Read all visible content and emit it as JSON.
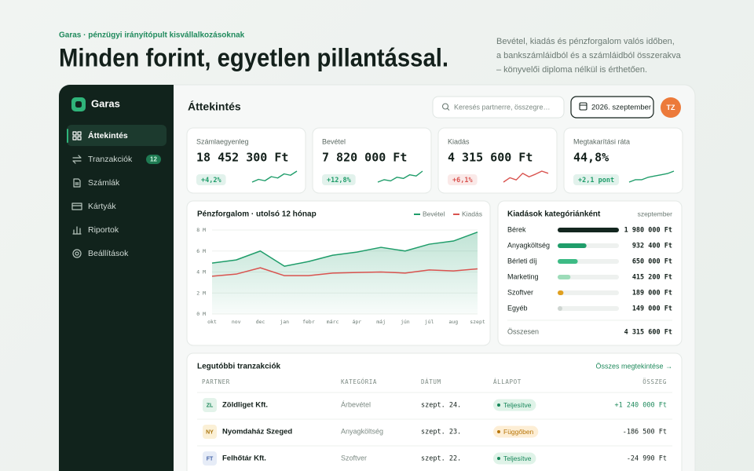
{
  "hero": {
    "eyebrow": "Garas · pénzügyi irányítópult kisvállalkozásoknak",
    "title": "Minden forint, egyetlen pillantással.",
    "description": "Bevétel, kiadás és pénzforgalom valós időben, a bankszámláidból és a számláidból összerakva – könyvelői diploma nélkül is érthetően."
  },
  "sidebar": {
    "brand": "Garas",
    "nav": [
      {
        "label": "Áttekintés",
        "active": true
      },
      {
        "label": "Tranzakciók",
        "badge": 12
      },
      {
        "label": "Számlák"
      },
      {
        "label": "Kártyák"
      },
      {
        "label": "Riportok"
      },
      {
        "label": "Beállítások"
      }
    ]
  },
  "topbar": {
    "title": "Áttekintés",
    "search_placeholder": "Keresés partnerre, összegre…",
    "period": "2026. szeptember",
    "avatar": "TZ"
  },
  "kpis": [
    {
      "label": "Számlaegyenleg",
      "value": "18 452 300 Ft",
      "delta": "+4,2%",
      "color": "#1f9d6a",
      "trend": [
        3,
        4,
        3.5,
        5,
        4.5,
        6,
        5.5,
        7
      ]
    },
    {
      "label": "Bevétel",
      "value": "7 820 000 Ft",
      "delta": "+12,8%",
      "color": "#1f9d6a",
      "trend": [
        2,
        3,
        2.5,
        4,
        3.5,
        5,
        4.5,
        6.5
      ]
    },
    {
      "label": "Kiadás",
      "value": "4 315 600 Ft",
      "delta": "+6,1%",
      "color": "#d9534f",
      "trend": [
        3,
        4,
        3.5,
        5,
        4.2,
        4.8,
        5.5,
        5
      ]
    },
    {
      "label": "Megtakarítási ráta",
      "value": "44,8%",
      "delta": "+2,1 pont",
      "color": "#1f9d6a",
      "trend": [
        2,
        3,
        3,
        4,
        4.5,
        5,
        5.5,
        6.5
      ]
    }
  ],
  "chart_data": {
    "type": "line",
    "title": "Pénzforgalom · utolsó 12 hónap",
    "categories": [
      "okt",
      "nov",
      "dec",
      "jan",
      "febr",
      "márc",
      "ápr",
      "máj",
      "jún",
      "júl",
      "aug",
      "szept"
    ],
    "series": [
      {
        "name": "Bevétel",
        "color": "#1f9d6a",
        "area": true,
        "values": [
          4.85,
          5.15,
          6.0,
          4.55,
          5.0,
          5.6,
          5.9,
          6.35,
          6.0,
          6.65,
          6.95,
          7.8
        ]
      },
      {
        "name": "Kiadás",
        "color": "#d9534f",
        "values": [
          3.6,
          3.8,
          4.4,
          3.65,
          3.65,
          3.9,
          3.95,
          4.0,
          3.9,
          4.2,
          4.1,
          4.3
        ]
      }
    ],
    "ylim": [
      0,
      8
    ],
    "yticks": [
      {
        "value": 0,
        "label": "0 M"
      },
      {
        "value": 2,
        "label": "2 M"
      },
      {
        "value": 4,
        "label": "4 M"
      },
      {
        "value": 6,
        "label": "6 M"
      },
      {
        "value": 8,
        "label": "8 M"
      }
    ],
    "grid": true,
    "legend": "top-right"
  },
  "categories_panel": {
    "title": "Kiadások kategóriánként",
    "period": "szeptember",
    "items": [
      {
        "name": "Bérek",
        "value": 1980000,
        "label": "1 980 000 Ft",
        "color": "#13261f"
      },
      {
        "name": "Anyagköltség",
        "value": 932400,
        "label": "932 400 Ft",
        "color": "#1f9d6a"
      },
      {
        "name": "Bérleti díj",
        "value": 650000,
        "label": "650 000 Ft",
        "color": "#3dbb85"
      },
      {
        "name": "Marketing",
        "value": 415200,
        "label": "415 200 Ft",
        "color": "#9ddcb9"
      },
      {
        "name": "Szoftver",
        "value": 189000,
        "label": "189 000 Ft",
        "color": "#e0a020"
      },
      {
        "name": "Egyéb",
        "value": 149000,
        "label": "149 000 Ft",
        "color": "#cfd6d2"
      }
    ],
    "total_label": "Összesen",
    "total": "4 315 600 Ft"
  },
  "transactions": {
    "title": "Legutóbbi tranzakciók",
    "link": "Összes megtekintése →",
    "columns": [
      "PARTNER",
      "KATEGÓRIA",
      "DÁTUM",
      "ÁLLAPOT",
      "ÖSSZEG"
    ],
    "rows": [
      {
        "initials": "ZL",
        "partner": "Zöldliget Kft.",
        "category": "Árbevétel",
        "date": "szept. 24.",
        "status": "Teljesítve",
        "amount": "+1 240 000 Ft",
        "badge_color": "#e3f3ea",
        "initials_color": "#1f8a5c",
        "status_color": "#17875a",
        "status_bg": "#dff3e8"
      },
      {
        "initials": "NY",
        "partner": "Nyomdaház Szeged",
        "category": "Anyagköltség",
        "date": "szept. 23.",
        "status": "Függőben",
        "amount": "-186 500 Ft",
        "badge_color": "#fbf0d6",
        "initials_color": "#a8740c",
        "status_color": "#b8760a",
        "status_bg": "#fdeed5"
      },
      {
        "initials": "FT",
        "partner": "Felhőtár Kft.",
        "category": "Szoftver",
        "date": "szept. 22.",
        "status": "Teljesítve",
        "amount": "-24 990 Ft",
        "badge_color": "#e6ecf7",
        "initials_color": "#4463a8",
        "status_color": "#17875a",
        "status_bg": "#dff3e8"
      }
    ]
  }
}
